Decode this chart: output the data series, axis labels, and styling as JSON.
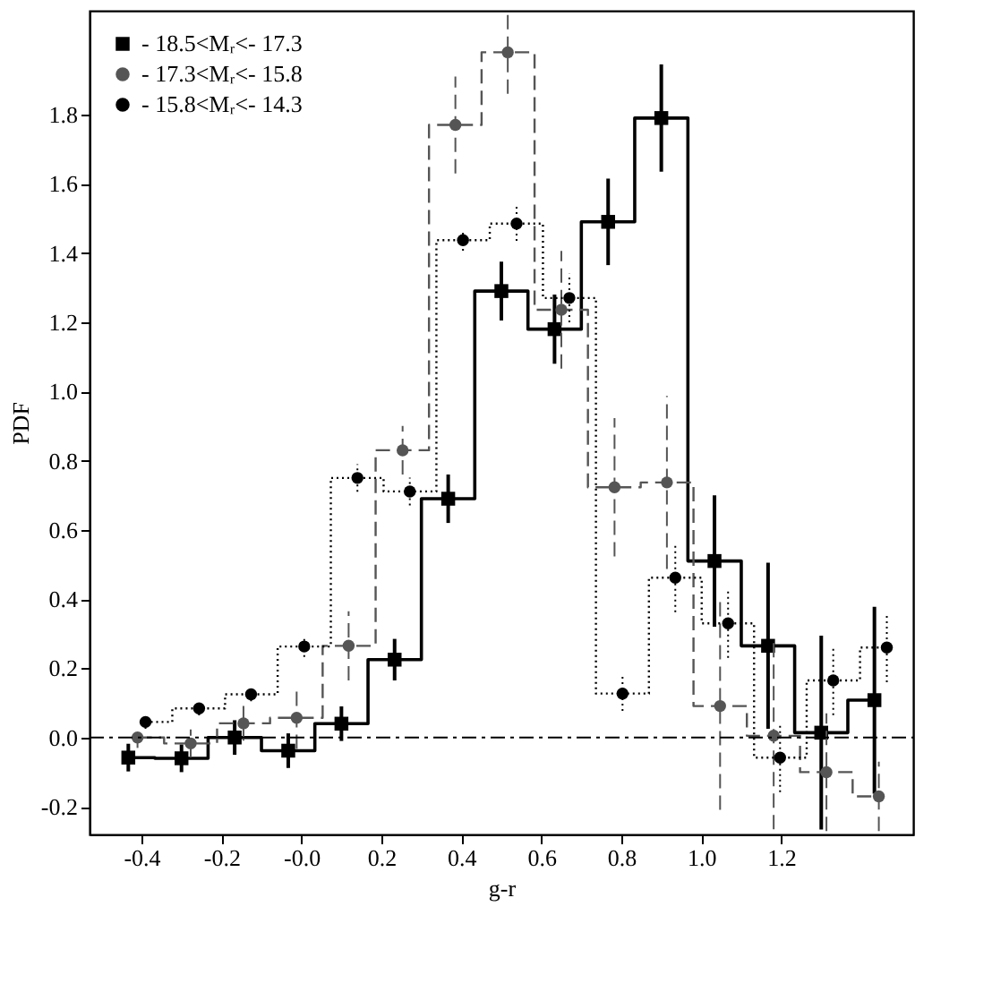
{
  "chart_data": {
    "type": "step",
    "xlabel": "g-r",
    "ylabel": "PDF",
    "xlim": [
      -0.53,
      1.53
    ],
    "ylim": [
      -0.28,
      2.1
    ],
    "xticks": [
      {
        "value": -0.4,
        "label": "-0.4"
      },
      {
        "value": -0.2,
        "label": "-0.2"
      },
      {
        "value": 0,
        "label": "-0.0"
      },
      {
        "value": 0.2,
        "label": "0.2"
      },
      {
        "value": 0.4,
        "label": "0.4"
      },
      {
        "value": 0.6,
        "label": "0.6"
      },
      {
        "value": 0.8,
        "label": "0.8"
      },
      {
        "value": 1.0,
        "label": "1.0"
      },
      {
        "value": 1.2,
        "label": "1.2"
      }
    ],
    "yticks": [
      -0.2,
      {
        "value": 0,
        "label": "0.0"
      },
      0.2,
      0.4,
      0.6,
      0.8,
      {
        "value": 1.0,
        "label": "1.0"
      },
      1.2,
      1.4,
      1.6,
      1.8
    ],
    "ref_lines": [
      {
        "axis": "y",
        "value": 0,
        "line_style": "dashdot",
        "color": "#000000"
      }
    ],
    "legend": "top left",
    "grid": false,
    "series": [
      {
        "name": "- 18.5<Mᵣ<- 17.3",
        "color": "#000000",
        "marker": "square",
        "line_style": "solid",
        "x": [
          -0.433,
          -0.3,
          -0.167,
          -0.033,
          0.1,
          0.233,
          0.367,
          0.5,
          0.633,
          0.767,
          0.9,
          1.033,
          1.167,
          1.3,
          1.433
        ],
        "values": [
          -0.058,
          -0.06,
          0.0,
          -0.038,
          0.04,
          0.225,
          0.69,
          1.29,
          1.18,
          1.49,
          1.79,
          0.51,
          0.265,
          0.014,
          0.108
        ],
        "errors": [
          0.04,
          0.04,
          0.05,
          0.05,
          0.05,
          0.06,
          0.07,
          0.085,
          0.1,
          0.125,
          0.155,
          0.19,
          0.24,
          0.28,
          0.27
        ]
      },
      {
        "name": "- 17.3<Mᵣ<- 15.8",
        "color": "#555555",
        "marker": "circle",
        "line_style": "dashed",
        "x": [
          -0.41,
          -0.277,
          -0.145,
          -0.012,
          0.118,
          0.253,
          0.385,
          0.516,
          0.65,
          0.783,
          0.914,
          1.047,
          1.181,
          1.313,
          1.444
        ],
        "values": [
          0.0,
          -0.017,
          0.041,
          0.057,
          0.265,
          0.83,
          1.77,
          1.98,
          1.236,
          0.723,
          0.737,
          0.091,
          0.005,
          -0.1,
          -0.17
        ],
        "errors": [
          0.03,
          0.04,
          0.05,
          0.09,
          0.1,
          0.07,
          0.14,
          0.12,
          0.17,
          0.2,
          0.25,
          0.3,
          0.27,
          0.17,
          0.1
        ]
      },
      {
        "name": "- 15.8<Mᵣ<- 14.3",
        "color": "#000000",
        "marker": "circle",
        "line_style": "dotted",
        "x": [
          -0.39,
          -0.256,
          -0.126,
          0.007,
          0.14,
          0.271,
          0.404,
          0.538,
          0.67,
          0.803,
          0.935,
          1.067,
          1.197,
          1.33,
          1.464
        ],
        "values": [
          0.045,
          0.084,
          0.125,
          0.263,
          0.75,
          0.711,
          1.437,
          1.485,
          1.27,
          0.127,
          0.462,
          0.33,
          -0.058,
          0.165,
          0.26
        ],
        "errors": [
          0.02,
          0.02,
          0.02,
          0.03,
          0.04,
          0.04,
          0.03,
          0.05,
          0.07,
          0.05,
          0.1,
          0.1,
          0.1,
          0.1,
          0.1
        ]
      }
    ]
  }
}
